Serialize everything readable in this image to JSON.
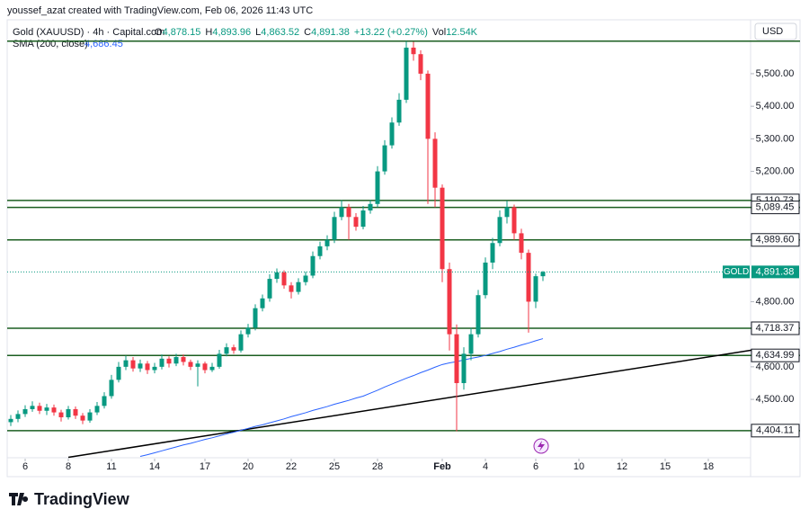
{
  "header": {
    "credit": "youssef_azat created with TradingView.com, Feb 06, 2026 11:43 UTC",
    "currency": "USD",
    "logo": "TradingView"
  },
  "chart_data": {
    "type": "candlestick",
    "title": "Gold (XAUUSD) · 4h · Capital.com",
    "ohlc_legend": [
      {
        "label": "O",
        "value": "4,878.15"
      },
      {
        "label": "H",
        "value": "4,893.96"
      },
      {
        "label": "L",
        "value": "4,863.52"
      },
      {
        "label": "C",
        "value": "4,891.38"
      },
      {
        "label": "",
        "value": "+13.22 (+0.27%)"
      },
      {
        "label": "Vol",
        "value": "12.54K"
      }
    ],
    "up_color": "#089981",
    "down_color": "#f23645",
    "x": [
      0,
      1,
      2,
      3,
      4,
      5,
      6,
      7,
      8,
      9,
      10,
      11,
      12,
      13,
      14,
      15,
      16,
      17,
      18,
      19,
      20,
      21,
      22,
      23,
      24,
      25,
      26,
      27,
      28,
      29,
      30,
      31,
      32,
      33,
      34,
      35,
      36,
      37,
      38,
      39,
      40,
      41,
      42,
      43,
      44,
      45,
      46,
      47,
      48,
      49,
      50,
      51,
      52,
      53,
      54,
      55,
      56,
      57,
      58,
      59,
      60,
      61,
      62,
      63,
      64,
      65,
      66,
      67,
      68,
      69,
      70,
      71,
      72,
      73,
      74
    ],
    "open": [
      4430,
      4440,
      4455,
      4470,
      4480,
      4465,
      4475,
      4460,
      4445,
      4470,
      4450,
      4435,
      4460,
      4480,
      4510,
      4560,
      4600,
      4620,
      4595,
      4610,
      4590,
      4600,
      4625,
      4610,
      4630,
      4615,
      4600,
      4610,
      4590,
      4600,
      4640,
      4660,
      4650,
      4700,
      4720,
      4780,
      4810,
      4870,
      4890,
      4850,
      4830,
      4860,
      4880,
      4940,
      4970,
      4990,
      5060,
      5090,
      5060,
      5030,
      5080,
      5100,
      5200,
      5280,
      5350,
      5420,
      5580,
      5560,
      5500,
      5300,
      5150,
      4900,
      4700,
      4550,
      4640,
      4700,
      4820,
      4920,
      4980,
      5060,
      5090,
      5010,
      4950,
      4800,
      4878.15
    ],
    "high": [
      4452,
      4466,
      4482,
      4494,
      4490,
      4486,
      4484,
      4468,
      4480,
      4478,
      4458,
      4470,
      4492,
      4522,
      4575,
      4615,
      4634,
      4630,
      4622,
      4618,
      4612,
      4638,
      4632,
      4640,
      4638,
      4622,
      4620,
      4616,
      4612,
      4652,
      4672,
      4668,
      4712,
      4732,
      4792,
      4822,
      4884,
      4902,
      4896,
      4860,
      4872,
      4892,
      4954,
      4984,
      5004,
      5076,
      5112,
      5100,
      5072,
      5094,
      5112,
      5216,
      5296,
      5366,
      5440,
      5600,
      5598,
      5572,
      5510,
      5320,
      5160,
      4920,
      4730,
      4660,
      4720,
      4836,
      4936,
      4996,
      5080,
      5110,
      5098,
      5024,
      4960,
      4886,
      4893.96
    ],
    "low": [
      4418,
      4430,
      4446,
      4462,
      4455,
      4452,
      4450,
      4432,
      4438,
      4440,
      4424,
      4428,
      4452,
      4472,
      4502,
      4552,
      4590,
      4585,
      4584,
      4578,
      4580,
      4592,
      4598,
      4602,
      4604,
      4590,
      4540,
      4580,
      4584,
      4594,
      4632,
      4640,
      4644,
      4690,
      4712,
      4770,
      4800,
      4858,
      4840,
      4810,
      4822,
      4850,
      4872,
      4930,
      4958,
      4980,
      5050,
      4990,
      5018,
      5022,
      5070,
      5090,
      5190,
      5270,
      5340,
      5410,
      5540,
      5480,
      5100,
      5090,
      4860,
      4650,
      4402,
      4530,
      4620,
      4690,
      4810,
      4900,
      4970,
      5040,
      4990,
      4930,
      4705,
      4780,
      4863.52
    ],
    "close": [
      4440,
      4455,
      4470,
      4480,
      4465,
      4475,
      4460,
      4445,
      4470,
      4450,
      4435,
      4460,
      4480,
      4510,
      4560,
      4600,
      4620,
      4595,
      4610,
      4590,
      4600,
      4625,
      4610,
      4630,
      4615,
      4600,
      4610,
      4590,
      4600,
      4640,
      4660,
      4650,
      4700,
      4720,
      4780,
      4810,
      4870,
      4890,
      4850,
      4830,
      4860,
      4880,
      4940,
      4970,
      4990,
      5060,
      5090,
      5060,
      5030,
      5080,
      5100,
      5200,
      5280,
      5350,
      5420,
      5580,
      5560,
      5500,
      5300,
      5150,
      4900,
      4700,
      4550,
      4640,
      4700,
      4820,
      4920,
      4980,
      5060,
      5090,
      5010,
      4950,
      4800,
      4878.15,
      4891.38
    ],
    "sma": {
      "name": "SMA (200, close)",
      "value_label": "4,686.45",
      "color": "#2962ff",
      "values": [
        null,
        null,
        null,
        null,
        null,
        null,
        null,
        null,
        null,
        null,
        null,
        null,
        null,
        null,
        null,
        null,
        null,
        null,
        4325,
        4330,
        4336,
        4342,
        4348,
        4354,
        4360,
        4365,
        4371,
        4377,
        4382,
        4388,
        4394,
        4399,
        4405,
        4411,
        4417,
        4422,
        4428,
        4434,
        4440,
        4447,
        4453,
        4459,
        4466,
        4472,
        4478,
        4485,
        4491,
        4497,
        4504,
        4510,
        4519,
        4528,
        4538,
        4547,
        4556,
        4565,
        4573,
        4582,
        4590,
        4599,
        4607,
        4612,
        4616,
        4621,
        4626,
        4630,
        4635,
        4641,
        4647,
        4654,
        4660,
        4667,
        4673,
        4680,
        4686.45
      ]
    },
    "levels": {
      "color": "#1b5e20",
      "values": [
        5600,
        5110.73,
        5089.45,
        4989.6,
        4718.37,
        4634.99,
        4404.11
      ],
      "value_labels": [
        null,
        "5,110.73",
        "5,089.45",
        "4,989.60",
        "4,718.37",
        "4,634.99",
        "4,404.11"
      ]
    },
    "trendline": {
      "color": "#000000",
      "x": [
        8,
        103
      ],
      "values": [
        4322,
        4651
      ]
    },
    "last_price": {
      "name": "GOLD",
      "value": 4891.38,
      "label": "4,891.38"
    },
    "xlim": [
      -0.5,
      102.875
    ],
    "ylim": [
      4318,
      5602
    ],
    "xticks": [
      {
        "value": 2,
        "label": "6"
      },
      {
        "value": 8,
        "label": "8"
      },
      {
        "value": 14,
        "label": "11"
      },
      {
        "value": 20,
        "label": "14"
      },
      {
        "value": 27,
        "label": "17"
      },
      {
        "value": 33,
        "label": "20"
      },
      {
        "value": 39,
        "label": "22"
      },
      {
        "value": 45,
        "label": "25"
      },
      {
        "value": 51,
        "label": "28"
      },
      {
        "value": 60,
        "label": "Feb"
      },
      {
        "value": 66,
        "label": "4"
      },
      {
        "value": 73,
        "label": "6"
      },
      {
        "value": 79,
        "label": "10"
      },
      {
        "value": 85,
        "label": "12"
      },
      {
        "value": 91,
        "label": "15"
      },
      {
        "value": 97,
        "label": "18"
      }
    ],
    "yticks": [
      {
        "value": 4500,
        "label": "4,500.00"
      },
      {
        "value": 4600,
        "label": "4,600.00"
      },
      {
        "value": 4800,
        "label": "4,800.00"
      },
      {
        "value": 5200,
        "label": "5,200.00"
      },
      {
        "value": 5300,
        "label": "5,300.00"
      },
      {
        "value": 5400,
        "label": "5,400.00"
      },
      {
        "value": 5500,
        "label": "5,500.00"
      }
    ]
  }
}
